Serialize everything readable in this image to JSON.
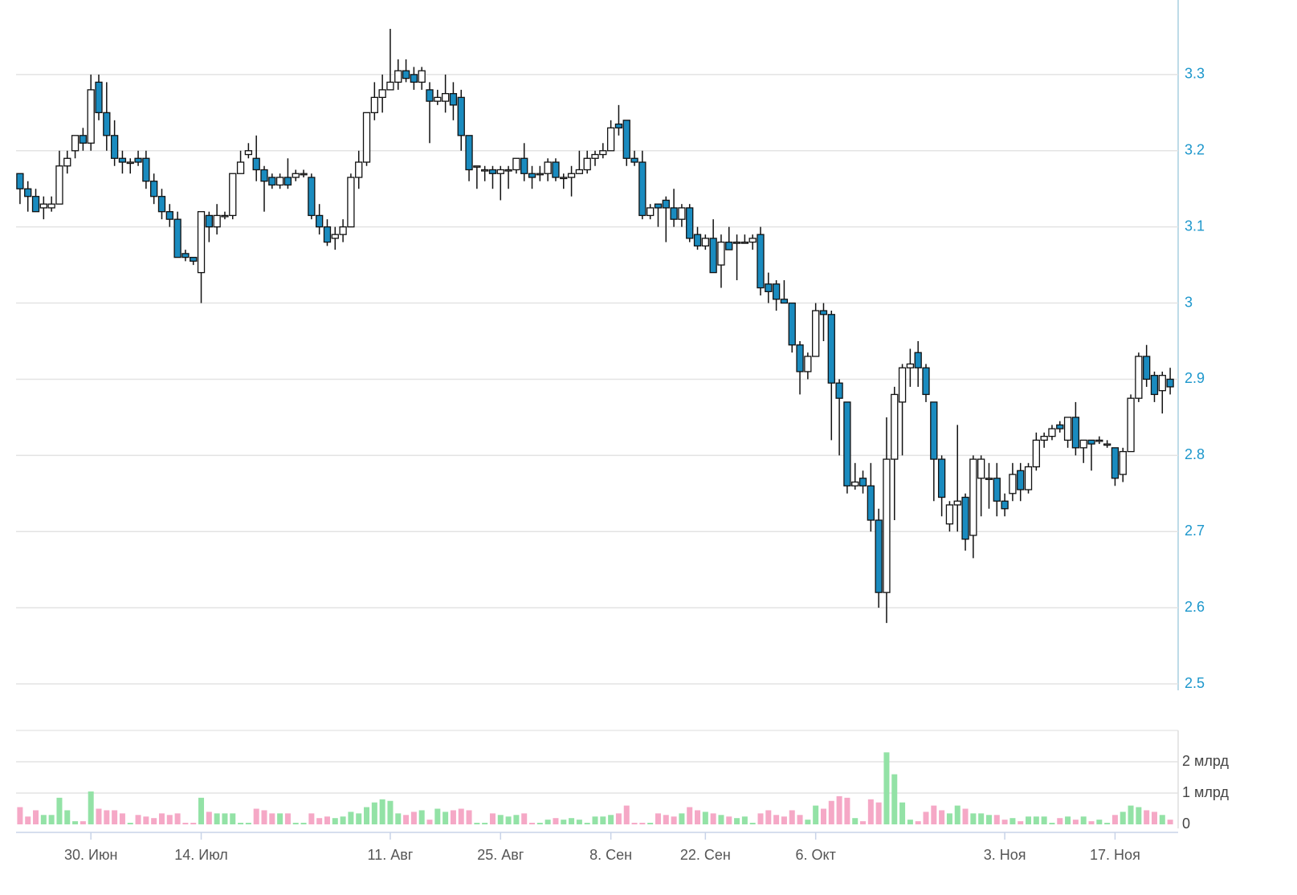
{
  "chart_data": {
    "type": "candlestick",
    "categories": [
      null,
      null,
      null,
      null,
      null,
      null,
      null,
      null,
      null,
      "30. Июн",
      null,
      null,
      null,
      null,
      null,
      null,
      null,
      null,
      null,
      null,
      null,
      null,
      null,
      "14. Июл",
      null,
      null,
      null,
      null,
      null,
      null,
      null,
      null,
      null,
      null,
      null,
      null,
      null,
      null,
      null,
      null,
      null,
      null,
      null,
      null,
      null,
      null,
      null,
      "11. Авг",
      null,
      null,
      null,
      null,
      null,
      null,
      null,
      null,
      null,
      null,
      null,
      null,
      null,
      "25. Авг",
      null,
      null,
      null,
      null,
      null,
      null,
      null,
      null,
      null,
      null,
      null,
      null,
      null,
      "8. Сен",
      null,
      null,
      null,
      null,
      null,
      null,
      null,
      null,
      null,
      null,
      null,
      "22. Сен",
      null,
      null,
      null,
      null,
      null,
      null,
      null,
      null,
      null,
      null,
      null,
      null,
      null,
      "6. Окт",
      null,
      null,
      null,
      null,
      null,
      null,
      null,
      null,
      null,
      null,
      null,
      null,
      null,
      null,
      null,
      null,
      null,
      null,
      null,
      null,
      null,
      null,
      null,
      "3. Ноя",
      null,
      null,
      null,
      null,
      null,
      null,
      null,
      null,
      null,
      null,
      null,
      null,
      null,
      "17. Ноя",
      null,
      null,
      null,
      null,
      null,
      null,
      null
    ],
    "open": [
      3.17,
      3.15,
      3.14,
      3.125,
      3.125,
      3.13,
      3.18,
      3.2,
      3.22,
      3.21,
      3.29,
      3.25,
      3.22,
      3.19,
      3.185,
      3.19,
      3.19,
      3.16,
      3.14,
      3.12,
      3.11,
      3.065,
      3.06,
      3.04,
      3.115,
      3.1,
      3.115,
      3.115,
      3.17,
      3.195,
      3.19,
      3.175,
      3.165,
      3.155,
      3.165,
      3.165,
      3.17,
      3.165,
      3.115,
      3.1,
      3.085,
      3.09,
      3.1,
      3.165,
      3.185,
      3.25,
      3.27,
      3.28,
      3.29,
      3.305,
      3.3,
      3.29,
      3.28,
      3.265,
      3.265,
      3.275,
      3.27,
      3.22,
      3.18,
      3.175,
      3.175,
      3.17,
      3.175,
      3.175,
      3.19,
      3.17,
      3.17,
      3.17,
      3.185,
      3.165,
      3.165,
      3.17,
      3.175,
      3.19,
      3.195,
      3.2,
      3.235,
      3.24,
      3.19,
      3.185,
      3.115,
      3.13,
      3.135,
      3.125,
      3.11,
      3.125,
      3.09,
      3.075,
      3.085,
      3.05,
      3.08,
      3.08,
      3.08,
      3.08,
      3.09,
      3.025,
      3.025,
      3.005,
      3.0,
      2.945,
      2.91,
      2.93,
      2.99,
      2.985,
      2.895,
      2.87,
      2.76,
      2.77,
      2.76,
      2.715,
      2.62,
      2.795,
      2.87,
      2.915,
      2.935,
      2.915,
      2.87,
      2.795,
      2.71,
      2.735,
      2.745,
      2.695,
      2.77,
      2.77,
      2.77,
      2.74,
      2.75,
      2.78,
      2.755,
      2.785,
      2.82,
      2.825,
      2.84,
      2.82,
      2.85,
      2.81,
      2.82,
      2.82,
      2.815,
      2.81,
      2.775,
      2.805,
      2.875,
      2.93,
      2.905,
      2.885,
      2.9
    ],
    "high": [
      3.17,
      3.16,
      3.15,
      3.14,
      3.14,
      3.2,
      3.2,
      3.22,
      3.23,
      3.3,
      3.3,
      3.29,
      3.24,
      3.2,
      3.19,
      3.2,
      3.2,
      3.17,
      3.15,
      3.13,
      3.12,
      3.07,
      3.06,
      3.12,
      3.12,
      3.13,
      3.12,
      3.17,
      3.2,
      3.21,
      3.22,
      3.18,
      3.17,
      3.17,
      3.19,
      3.175,
      3.175,
      3.17,
      3.13,
      3.11,
      3.1,
      3.11,
      3.17,
      3.2,
      3.25,
      3.29,
      3.3,
      3.36,
      3.32,
      3.32,
      3.31,
      3.31,
      3.29,
      3.28,
      3.3,
      3.29,
      3.28,
      3.22,
      3.18,
      3.18,
      3.18,
      3.18,
      3.18,
      3.19,
      3.21,
      3.18,
      3.18,
      3.19,
      3.19,
      3.17,
      3.18,
      3.2,
      3.2,
      3.2,
      3.21,
      3.24,
      3.26,
      3.24,
      3.2,
      3.2,
      3.13,
      3.13,
      3.14,
      3.15,
      3.13,
      3.13,
      3.1,
      3.09,
      3.11,
      3.09,
      3.1,
      3.09,
      3.09,
      3.09,
      3.1,
      3.04,
      3.03,
      3.03,
      3.0,
      2.95,
      2.935,
      3.0,
      3.0,
      2.99,
      2.9,
      2.87,
      2.79,
      2.78,
      2.79,
      2.73,
      2.85,
      2.89,
      2.92,
      2.94,
      2.95,
      2.92,
      2.87,
      2.8,
      2.74,
      2.84,
      2.75,
      2.8,
      2.8,
      2.79,
      2.79,
      2.75,
      2.79,
      2.79,
      2.79,
      2.83,
      2.83,
      2.84,
      2.845,
      2.85,
      2.87,
      2.82,
      2.82,
      2.825,
      2.82,
      2.81,
      2.81,
      2.88,
      2.935,
      2.945,
      2.91,
      2.91,
      2.915
    ],
    "low": [
      3.13,
      3.12,
      3.12,
      3.11,
      3.12,
      3.13,
      3.17,
      3.19,
      3.2,
      3.2,
      3.24,
      3.2,
      3.18,
      3.17,
      3.17,
      3.18,
      3.15,
      3.13,
      3.11,
      3.1,
      3.06,
      3.055,
      3.05,
      3.0,
      3.08,
      3.09,
      3.11,
      3.11,
      3.17,
      3.19,
      3.16,
      3.12,
      3.15,
      3.15,
      3.15,
      3.16,
      3.165,
      3.11,
      3.09,
      3.075,
      3.07,
      3.08,
      3.1,
      3.15,
      3.18,
      3.24,
      3.25,
      3.28,
      3.28,
      3.29,
      3.28,
      3.28,
      3.21,
      3.26,
      3.25,
      3.24,
      3.2,
      3.16,
      3.15,
      3.16,
      3.15,
      3.135,
      3.15,
      3.17,
      3.16,
      3.15,
      3.16,
      3.16,
      3.16,
      3.15,
      3.14,
      3.17,
      3.17,
      3.18,
      3.19,
      3.2,
      3.22,
      3.18,
      3.18,
      3.11,
      3.11,
      3.1,
      3.08,
      3.1,
      3.1,
      3.08,
      3.07,
      3.07,
      3.04,
      3.02,
      3.07,
      3.03,
      3.08,
      3.07,
      3.01,
      3.0,
      2.99,
      3.0,
      2.935,
      2.88,
      2.9,
      2.93,
      2.95,
      2.82,
      2.8,
      2.75,
      2.755,
      2.75,
      2.7,
      2.6,
      2.58,
      2.715,
      2.8,
      2.89,
      2.89,
      2.87,
      2.74,
      2.72,
      2.7,
      2.7,
      2.675,
      2.665,
      2.72,
      2.73,
      2.72,
      2.72,
      2.74,
      2.74,
      2.75,
      2.78,
      2.81,
      2.82,
      2.83,
      2.81,
      2.8,
      2.79,
      2.78,
      2.815,
      2.81,
      2.76,
      2.765,
      2.805,
      2.87,
      2.89,
      2.87,
      2.855,
      2.88
    ],
    "close": [
      3.15,
      3.14,
      3.12,
      3.13,
      3.13,
      3.18,
      3.19,
      3.22,
      3.21,
      3.28,
      3.25,
      3.22,
      3.19,
      3.185,
      3.185,
      3.185,
      3.16,
      3.14,
      3.12,
      3.11,
      3.06,
      3.06,
      3.055,
      3.12,
      3.1,
      3.115,
      3.115,
      3.17,
      3.185,
      3.2,
      3.175,
      3.16,
      3.155,
      3.165,
      3.155,
      3.17,
      3.17,
      3.115,
      3.1,
      3.08,
      3.09,
      3.1,
      3.165,
      3.185,
      3.25,
      3.27,
      3.28,
      3.29,
      3.305,
      3.295,
      3.29,
      3.305,
      3.265,
      3.27,
      3.275,
      3.26,
      3.22,
      3.175,
      3.18,
      3.175,
      3.17,
      3.175,
      3.175,
      3.19,
      3.17,
      3.165,
      3.17,
      3.185,
      3.165,
      3.165,
      3.17,
      3.175,
      3.19,
      3.195,
      3.2,
      3.23,
      3.23,
      3.19,
      3.185,
      3.115,
      3.125,
      3.125,
      3.125,
      3.11,
      3.125,
      3.085,
      3.075,
      3.085,
      3.04,
      3.08,
      3.07,
      3.08,
      3.08,
      3.085,
      3.02,
      3.015,
      3.005,
      3.0,
      2.945,
      2.91,
      2.93,
      2.99,
      2.985,
      2.895,
      2.875,
      2.76,
      2.765,
      2.76,
      2.715,
      2.62,
      2.795,
      2.88,
      2.915,
      2.92,
      2.915,
      2.88,
      2.795,
      2.745,
      2.735,
      2.74,
      2.69,
      2.795,
      2.795,
      2.77,
      2.74,
      2.73,
      2.775,
      2.755,
      2.785,
      2.82,
      2.825,
      2.835,
      2.835,
      2.85,
      2.81,
      2.82,
      2.815,
      2.82,
      2.815,
      2.77,
      2.805,
      2.875,
      2.93,
      2.9,
      2.88,
      2.905,
      2.89
    ],
    "volume": [
      0.55,
      0.25,
      0.45,
      0.3,
      0.3,
      0.85,
      0.45,
      0.1,
      0.1,
      1.05,
      0.5,
      0.45,
      0.45,
      0.35,
      0.05,
      0.3,
      0.25,
      0.2,
      0.35,
      0.3,
      0.35,
      0.05,
      0.05,
      0.85,
      0.4,
      0.35,
      0.35,
      0.35,
      0.05,
      0.05,
      0.5,
      0.45,
      0.35,
      0.35,
      0.35,
      0.05,
      0.05,
      0.35,
      0.2,
      0.25,
      0.2,
      0.25,
      0.4,
      0.35,
      0.55,
      0.7,
      0.8,
      0.75,
      0.35,
      0.3,
      0.4,
      0.45,
      0.15,
      0.5,
      0.4,
      0.45,
      0.5,
      0.45,
      0.05,
      0.05,
      0.35,
      0.3,
      0.25,
      0.3,
      0.35,
      0.05,
      0.05,
      0.15,
      0.2,
      0.15,
      0.2,
      0.15,
      0.05,
      0.25,
      0.25,
      0.3,
      0.35,
      0.6,
      0.05,
      0.05,
      0.05,
      0.35,
      0.3,
      0.25,
      0.35,
      0.55,
      0.45,
      0.4,
      0.35,
      0.3,
      0.25,
      0.2,
      0.25,
      0.05,
      0.35,
      0.45,
      0.3,
      0.25,
      0.45,
      0.3,
      0.15,
      0.6,
      0.5,
      0.75,
      0.9,
      0.85,
      0.2,
      0.1,
      0.8,
      0.7,
      2.3,
      1.6,
      0.7,
      0.15,
      0.1,
      0.4,
      0.6,
      0.45,
      0.35,
      0.6,
      0.5,
      0.35,
      0.35,
      0.3,
      0.3,
      0.15,
      0.2,
      0.1,
      0.25,
      0.25,
      0.25,
      0.05,
      0.2,
      0.25,
      0.15,
      0.25,
      0.1,
      0.15,
      0.05,
      0.3,
      0.4,
      0.6,
      0.55,
      0.45,
      0.4,
      0.3,
      0.15
    ],
    "ylim": [
      2.5,
      3.4
    ],
    "yticks": [
      2.5,
      2.6,
      2.7,
      2.8,
      2.9,
      3,
      3.1,
      3.2,
      3.3
    ],
    "volume_ylim": [
      0,
      3
    ],
    "volume_yticks": [
      0,
      {
        "value": 1,
        "label": "1 млрд"
      },
      {
        "value": 2,
        "label": "2 млрд"
      }
    ],
    "up_color": "#ffffff",
    "down_color": "#1a8bbf",
    "volume_up_color": "#93e2a6",
    "volume_down_color": "#f5a8c6",
    "grid": true
  }
}
